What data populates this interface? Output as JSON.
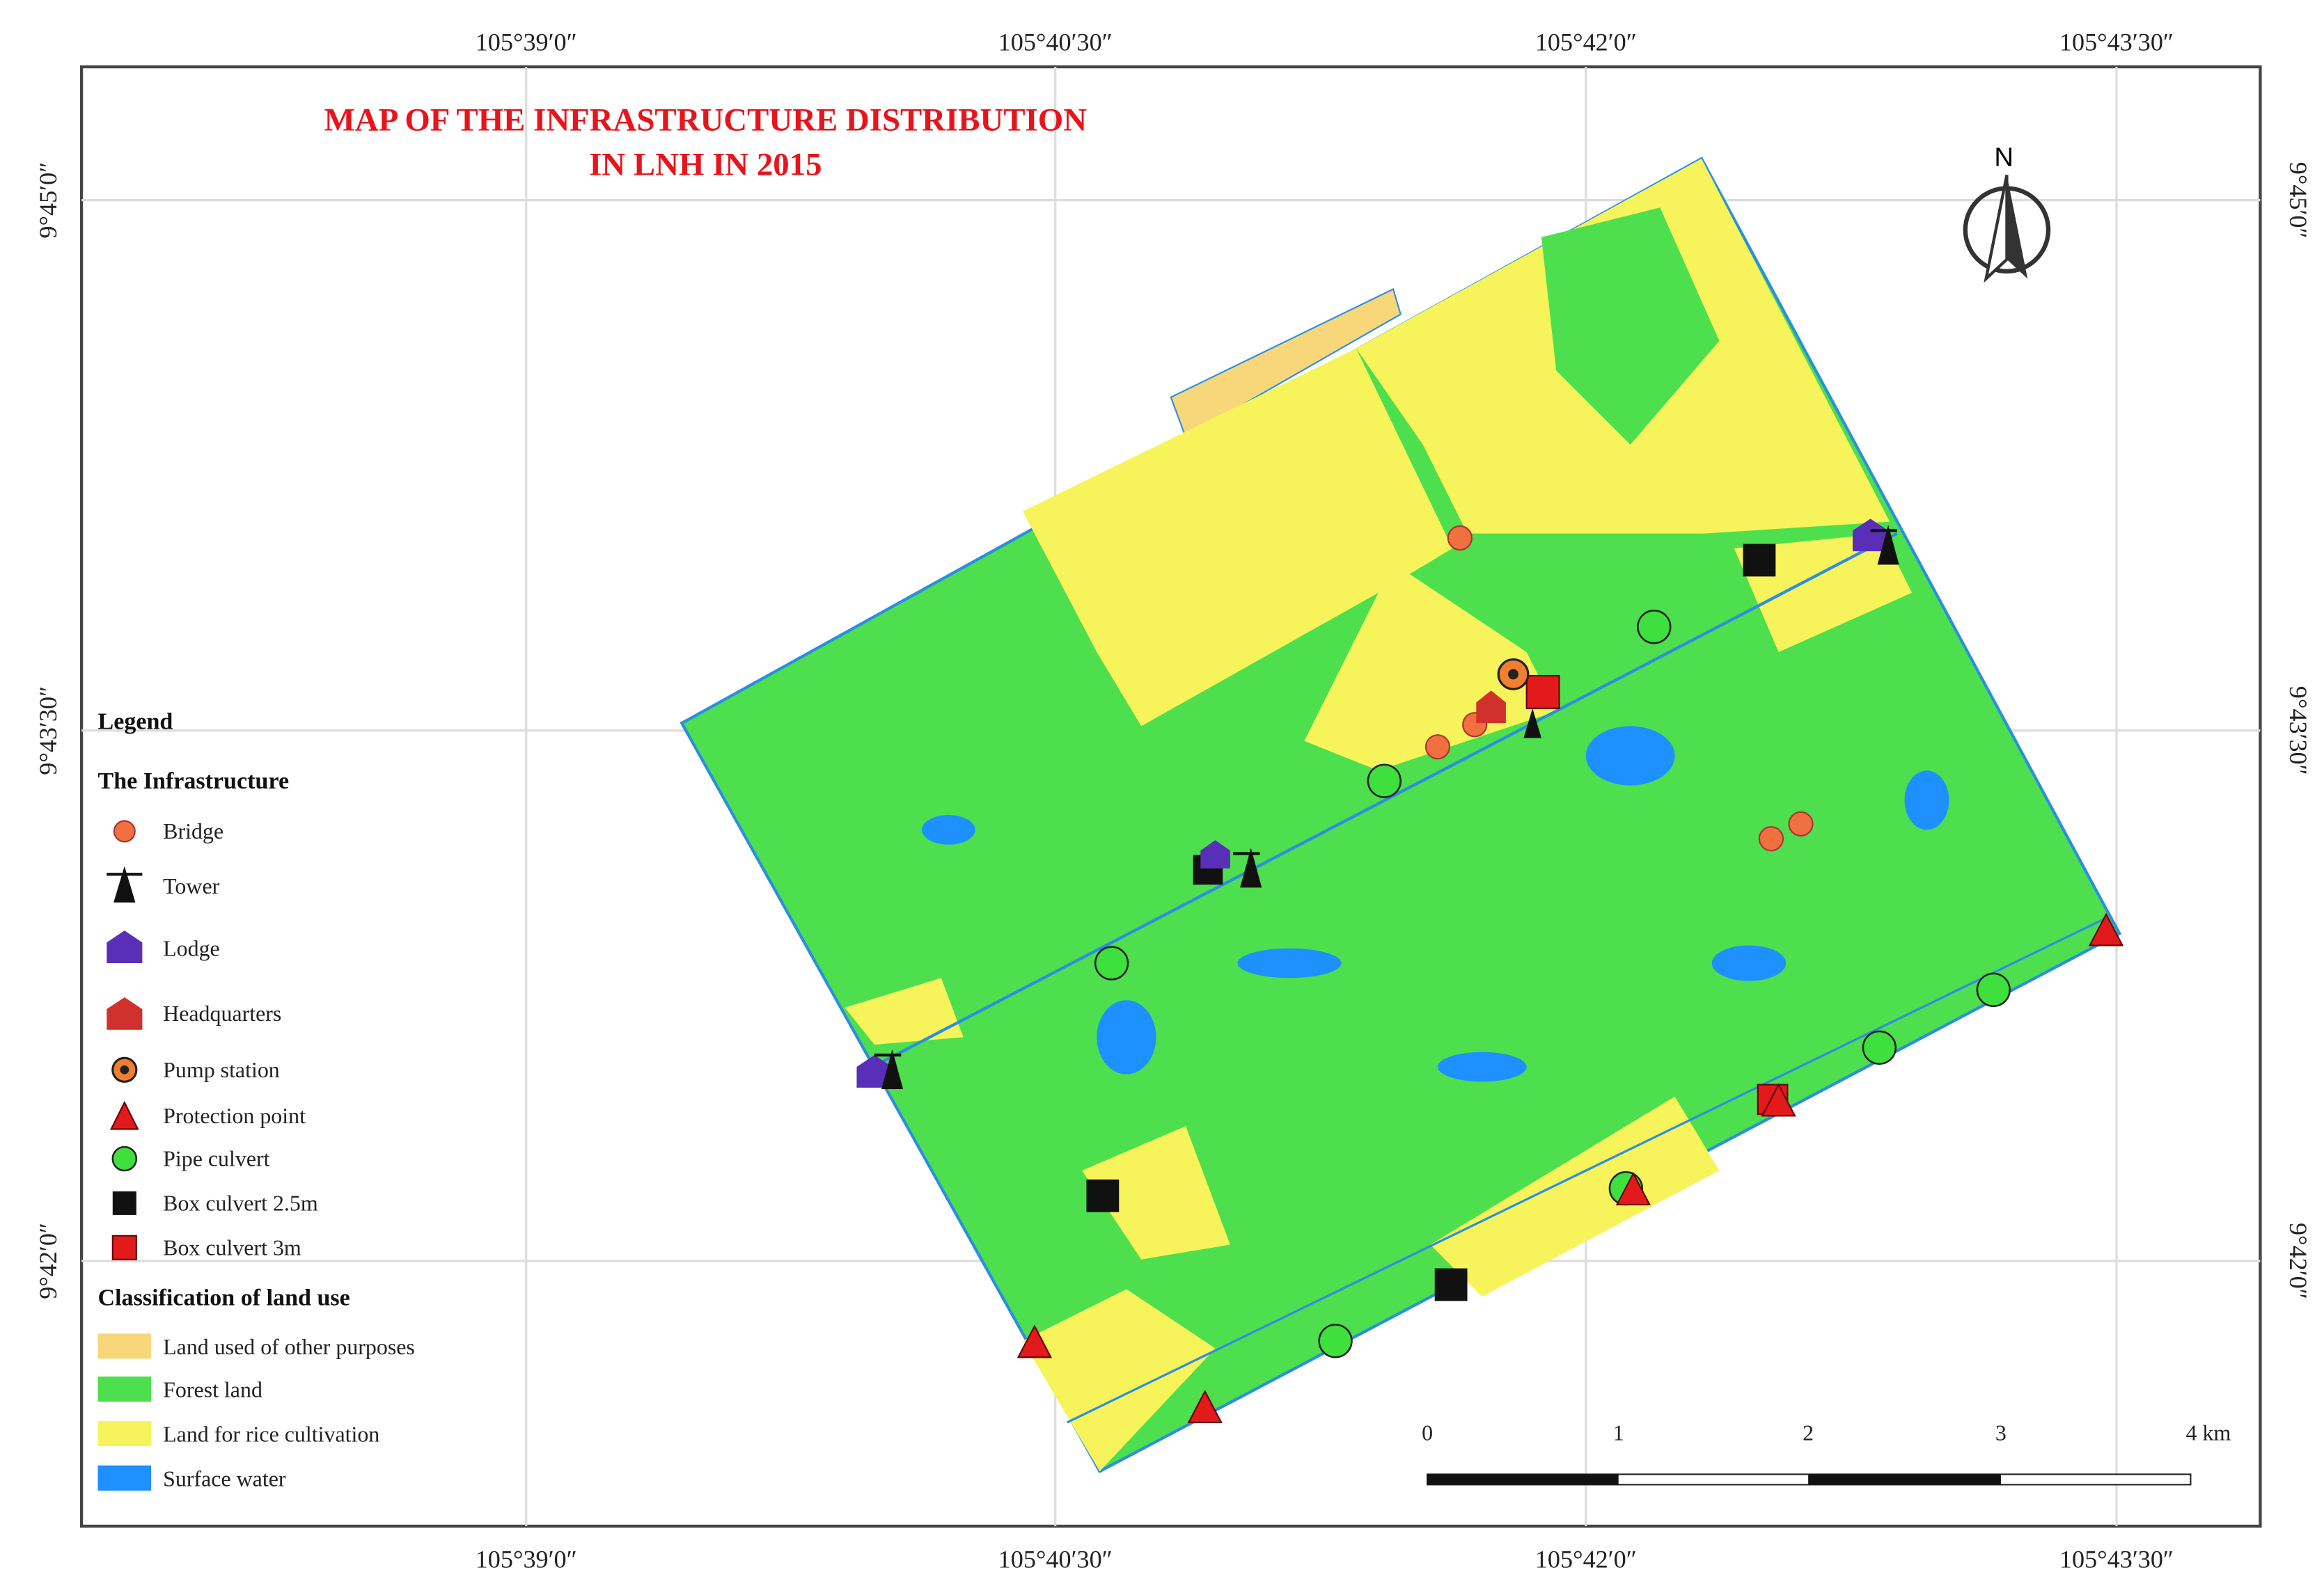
{
  "title": [
    "MAP OF THE INFRASTRUCTURE  DISTRIBUTION",
    "IN LNH IN 2015"
  ],
  "longitude_labels": [
    "105°39′0″",
    "105°40′30″",
    "105°42′0″",
    "105°43′30″"
  ],
  "latitude_labels": [
    "9°45′0″",
    "9°43′30″",
    "9°42′0″"
  ],
  "north": "N",
  "legend": {
    "title": "Legend",
    "infrastructure_heading": "The Infrastructure",
    "infrastructure": [
      "Bridge",
      "Tower",
      "Lodge",
      "Headquarters",
      "Pump station",
      "Protection point",
      "Pipe culvert",
      "Box culvert 2.5m",
      "Box culvert 3m"
    ],
    "land_use_heading": "Classification of land use",
    "land_use": [
      "Land used of other purposes",
      "Forest land",
      "Land for rice cultivation",
      "Surface water"
    ]
  },
  "scale_bar": [
    "0",
    "1",
    "2",
    "3",
    "4 km"
  ]
}
